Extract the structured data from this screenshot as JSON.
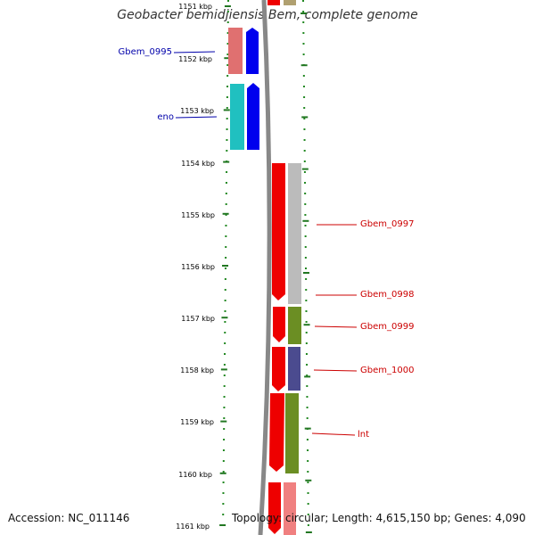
{
  "title": "Geobacter bemidjiensis Bem, complete genome",
  "footer": {
    "accession": "Accession: NC_011146",
    "topology": "Topology: circular; Length: 4,615,150 bp; Genes: 4,090"
  },
  "ruler_labels": [
    "1151 kbp",
    "1152 kbp",
    "1153 kbp",
    "1154 kbp",
    "1155 kbp",
    "1156 kbp",
    "1157 kbp",
    "1158 kbp",
    "1159 kbp",
    "1160 kbp",
    "1161 kbp"
  ],
  "gene_labels_left": [
    {
      "text": "Gbem_0995",
      "color": "#0000aa"
    },
    {
      "text": "eno",
      "color": "#0000aa"
    }
  ],
  "gene_labels_right": [
    {
      "text": "Gbem_0997",
      "color": "#cc0000"
    },
    {
      "text": "Gbem_0998",
      "color": "#cc0000"
    },
    {
      "text": "Gbem_0999",
      "color": "#cc0000"
    },
    {
      "text": "Gbem_1000",
      "color": "#cc0000"
    },
    {
      "text": "lnt",
      "color": "#cc0000"
    }
  ],
  "colors": {
    "forward_strand": "#ee0000",
    "reverse_strand": "#0000ee",
    "gene_gray": "#bbbbbb",
    "gene_olive": "#6b8e23",
    "gene_purple": "#4b4b8f",
    "gene_cyan": "#20c0c0",
    "gene_pink": "#f08080",
    "tick_green": "#227722",
    "backbone": "#888888"
  }
}
